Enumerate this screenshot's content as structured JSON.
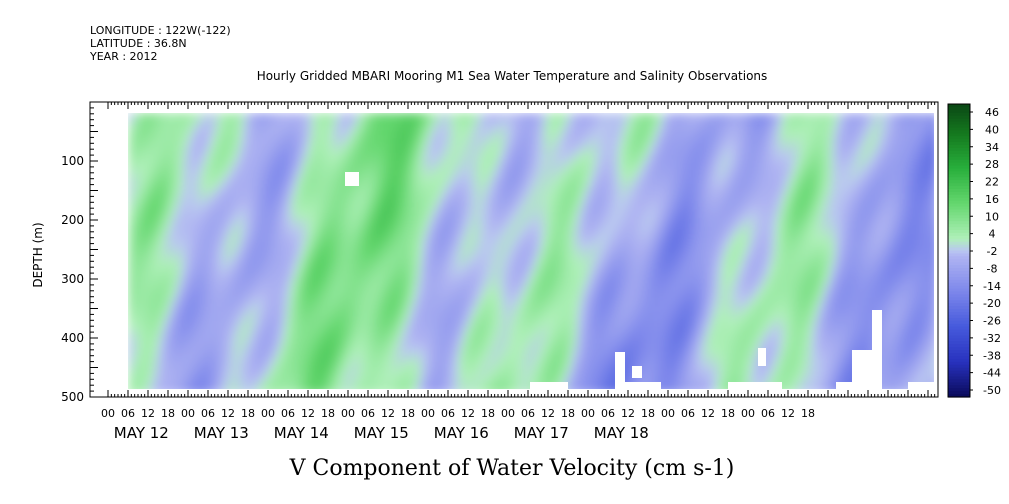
{
  "header": {
    "longitude": "LONGITUDE : 122W(-122)",
    "latitude": "LATITUDE : 36.8N",
    "year": "YEAR : 2012",
    "title": "Hourly Gridded MBARI Mooring M1 Sea Water Temperature and Salinity Observations"
  },
  "chart_data": {
    "type": "heatmap",
    "title": "Hourly Gridded MBARI Mooring M1 Sea Water Temperature and Salinity Observations",
    "xlabel": "V Component of Water Velocity (cm s-1)",
    "ylabel": "DEPTH (m)",
    "ylim": [
      500,
      0
    ],
    "y_ticks": [
      100,
      200,
      300,
      400,
      500
    ],
    "x_hour_ticks": [
      "00",
      "06",
      "12",
      "18",
      "00",
      "06",
      "12",
      "18",
      "00",
      "06",
      "12",
      "18",
      "00",
      "06",
      "12",
      "18",
      "00",
      "06",
      "12",
      "18",
      "00",
      "06",
      "12",
      "18",
      "00",
      "06",
      "12",
      "18",
      "00",
      "06",
      "12",
      "18",
      "00",
      "06",
      "12",
      "18"
    ],
    "x_day_labels": [
      "MAY 12",
      "MAY 13",
      "MAY 14",
      "MAY 15",
      "MAY 16",
      "MAY 17",
      "MAY 18"
    ],
    "data_depth_range": [
      20,
      485
    ],
    "colorbar": {
      "labels": [
        46,
        40,
        34,
        28,
        22,
        16,
        10,
        4,
        -2,
        -8,
        -14,
        -20,
        -26,
        -32,
        -38,
        -44,
        -50
      ],
      "range": [
        -50,
        50
      ]
    },
    "daily_mean_v": [
      {
        "day": "MAY 12",
        "pattern": "mixed, green bands near 06-12h"
      },
      {
        "day": "MAY 13",
        "pattern": "mostly positive, green"
      },
      {
        "day": "MAY 14",
        "pattern": "mixed"
      },
      {
        "day": "MAY 15",
        "pattern": "green upper, blue lower"
      },
      {
        "day": "MAY 16",
        "pattern": "mostly negative, blue"
      },
      {
        "day": "MAY 17",
        "pattern": "mixed"
      },
      {
        "day": "MAY 18",
        "pattern": "negative, blue"
      }
    ],
    "grid": false,
    "legend": "right colorbar"
  }
}
